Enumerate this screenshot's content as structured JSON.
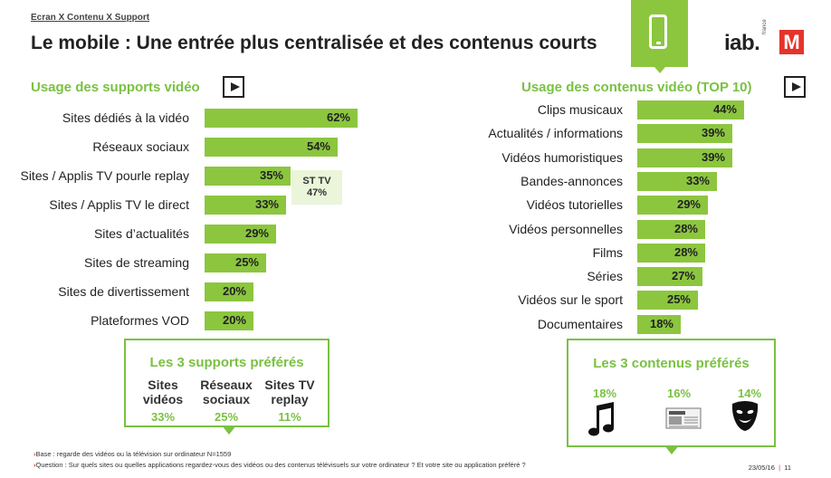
{
  "header": {
    "breadcrumb": "Ecran X Contenu X Support",
    "title": "Le mobile : Une entrée plus centralisée et des contenus courts",
    "logo_iab": "iab.",
    "logo_iab_sub": "france",
    "logo_m": "M"
  },
  "colors": {
    "accent": "#8cc63f",
    "title_green": "#7ac143",
    "brand_red": "#e4342a"
  },
  "left": {
    "title": "Usage des supports vidéo",
    "sttv_label": "ST TV",
    "sttv_value": "47%",
    "pref_title": "Les 3 supports préférés",
    "prefs": [
      {
        "line1": "Sites",
        "line2": "vidéos",
        "value": "33%"
      },
      {
        "line1": "Réseaux",
        "line2": "sociaux",
        "value": "25%"
      },
      {
        "line1": "Sites TV",
        "line2": "replay",
        "value": "11%"
      }
    ]
  },
  "right": {
    "title": "Usage des contenus vidéo (TOP 10)",
    "pref_title": "Les 3 contenus préférés",
    "prefs": [
      {
        "value": "18%",
        "icon": "music-note-icon"
      },
      {
        "value": "16%",
        "icon": "newspaper-icon"
      },
      {
        "value": "14%",
        "icon": "theater-mask-icon"
      }
    ]
  },
  "chart_data": [
    {
      "type": "bar",
      "orientation": "horizontal",
      "title": "Usage des supports vidéo",
      "categories": [
        "Sites dédiés à la vidéo",
        "Réseaux sociaux",
        "Sites / Applis TV pourle replay",
        "Sites / Applis TV le direct",
        "Sites d’actualités",
        "Sites de streaming",
        "Sites de divertissement",
        "Plateformes VOD"
      ],
      "values": [
        62,
        54,
        35,
        33,
        29,
        25,
        20,
        20
      ],
      "labels": [
        "62%",
        "54%",
        "35%",
        "33%",
        "29%",
        "25%",
        "20%",
        "20%"
      ],
      "annotation": "ST TV 47%"
    },
    {
      "type": "bar",
      "orientation": "horizontal",
      "title": "Usage des contenus vidéo (TOP 10)",
      "categories": [
        "Clips musicaux",
        "Actualités / informations",
        "Vidéos humoristiques",
        "Bandes-annonces",
        "Vidéos tutorielles",
        "Vidéos personnelles",
        "Films",
        "Séries",
        "Vidéos sur le sport",
        "Documentaires"
      ],
      "values": [
        44,
        39,
        39,
        33,
        29,
        28,
        28,
        27,
        25,
        18
      ],
      "labels": [
        "44%",
        "39%",
        "39%",
        "33%",
        "29%",
        "28%",
        "28%",
        "27%",
        "25%",
        "18%"
      ]
    }
  ],
  "footer": {
    "note1": "Base : regarde des vidéos ou la télévision sur ordinateur N=1559",
    "note2": "Question : Sur quels sites ou quelles applications regardez-vous des vidéos ou des contenus télévisuels sur votre ordinateur ? Et votre site ou application préféré ?",
    "date": "23/05/16",
    "sep": "|",
    "page": "11"
  }
}
